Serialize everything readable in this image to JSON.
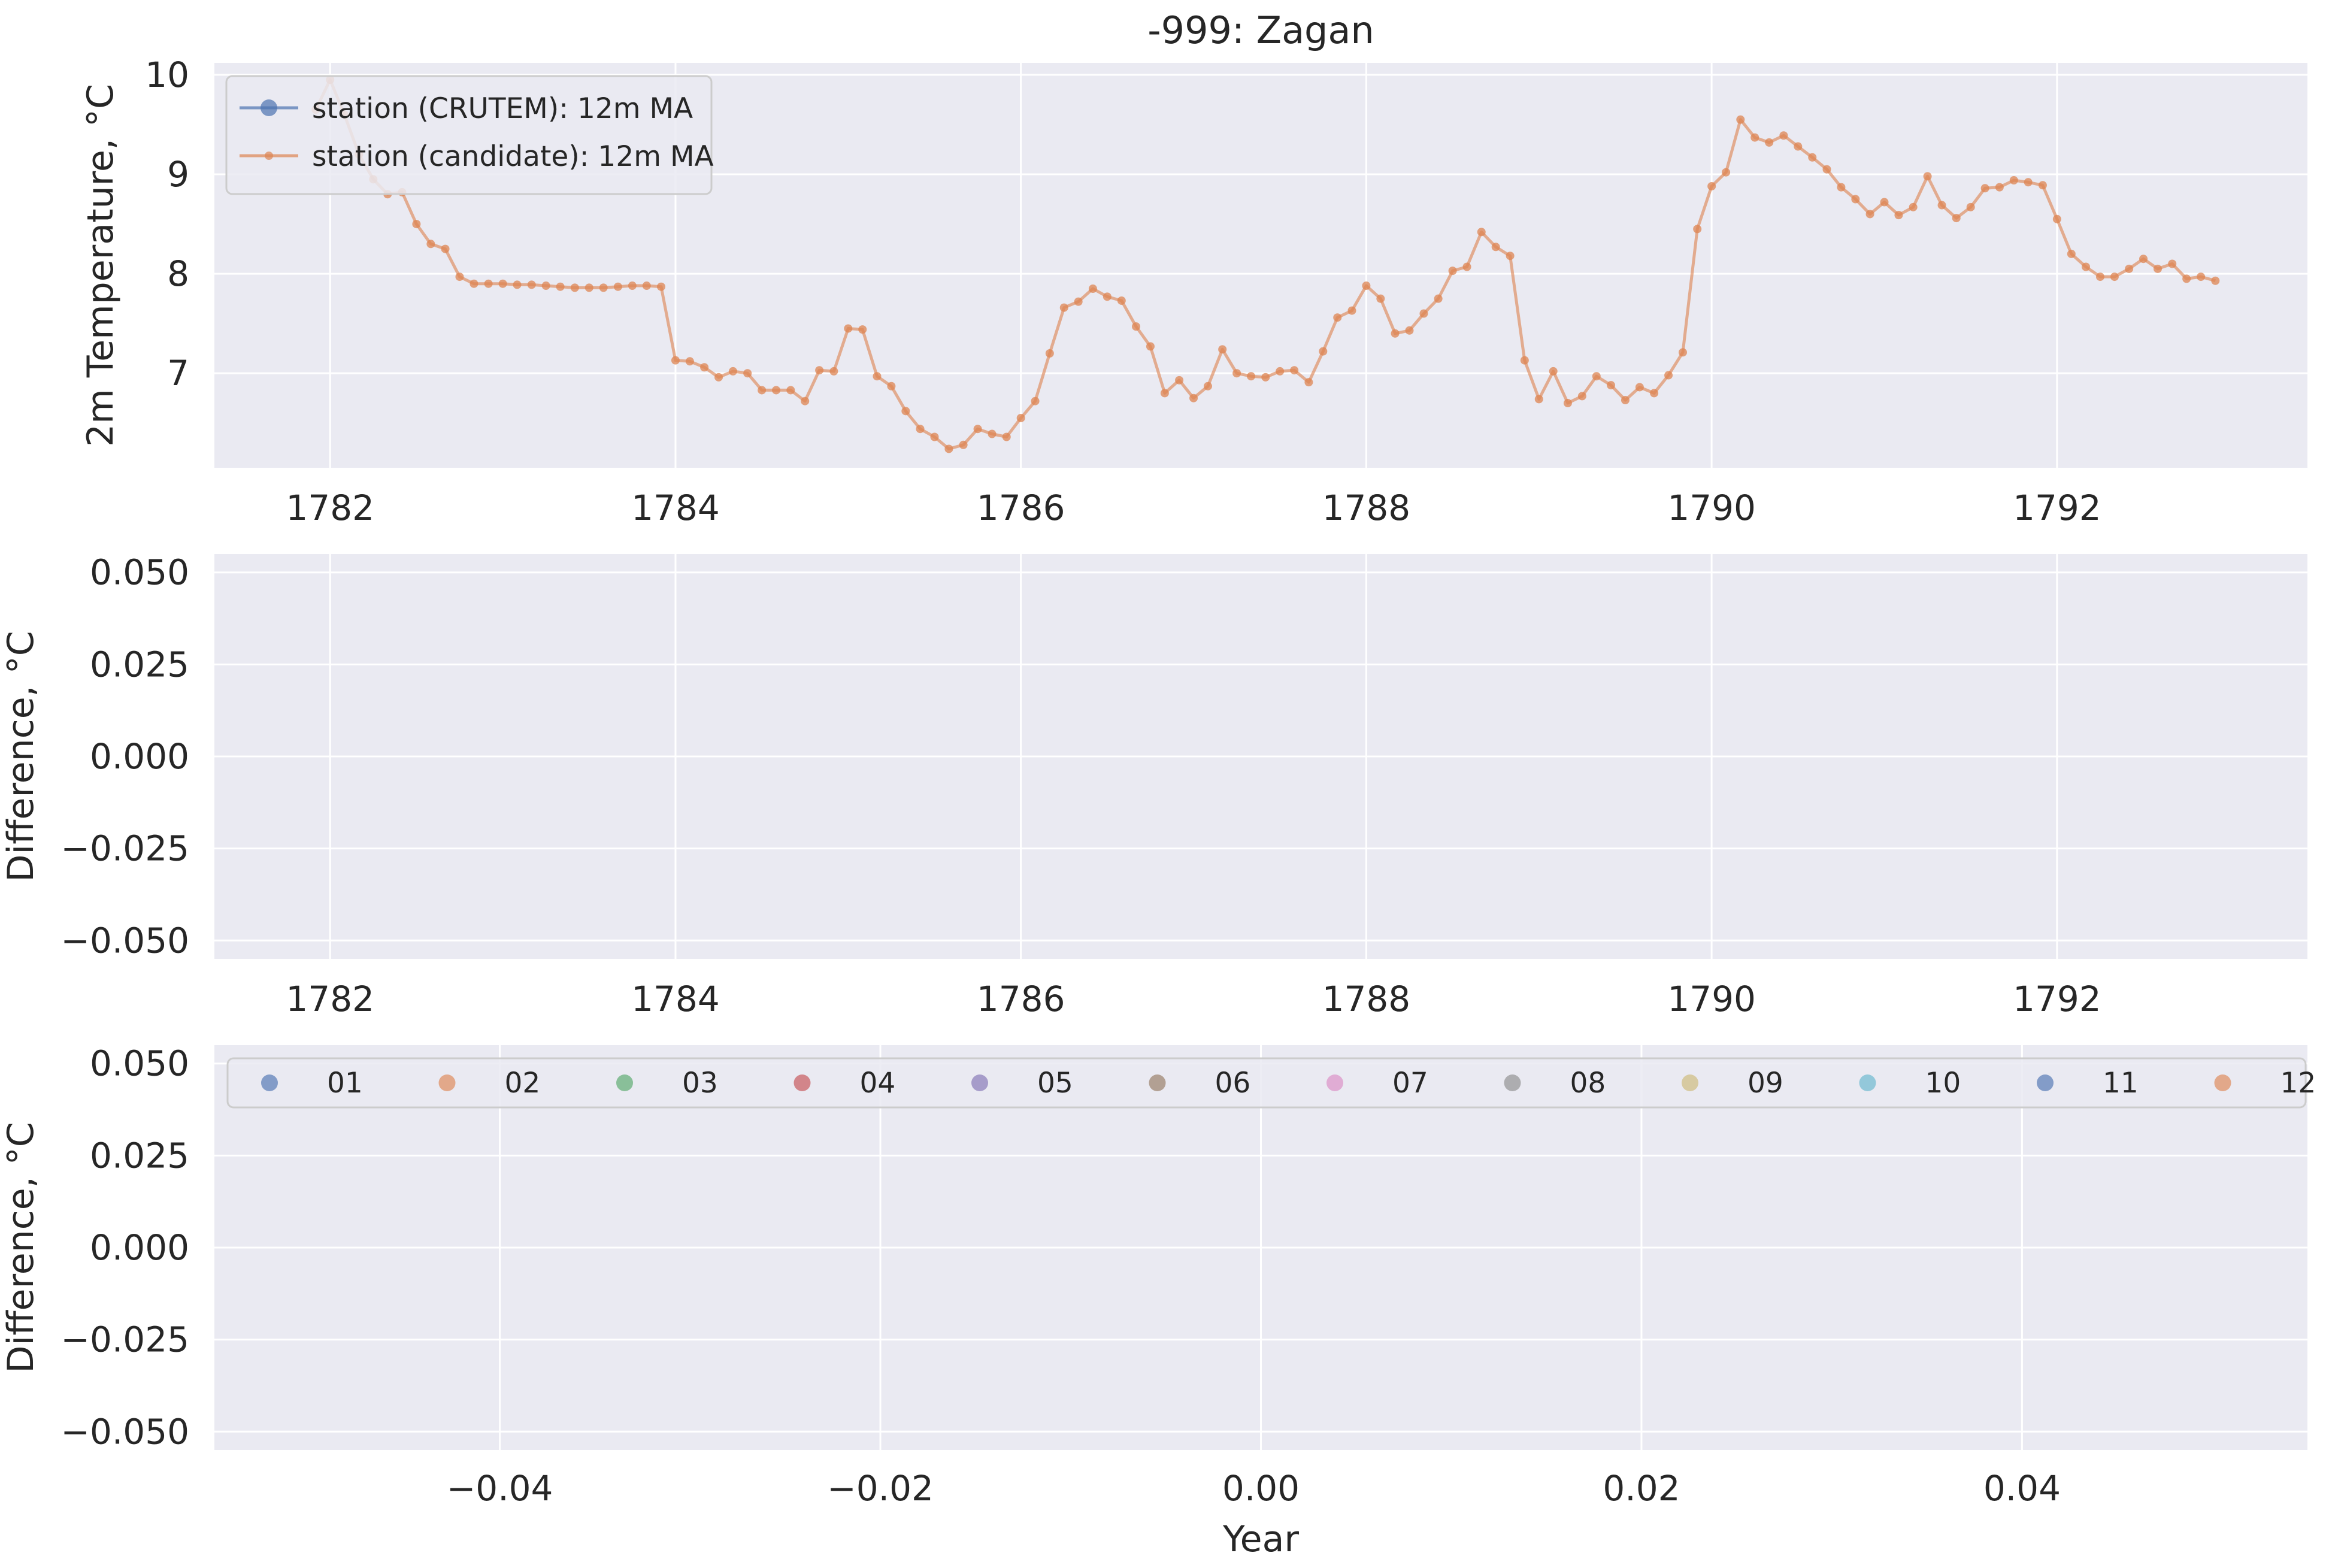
{
  "figure": {
    "background": "#ffffff",
    "axes_background": "#eaeaf2",
    "grid_color": "#ffffff",
    "text_color": "#262626"
  },
  "chart_data": [
    {
      "type": "line",
      "title": "-999: Zagan",
      "xlabel": "",
      "ylabel": "2m Temperature, °C",
      "xlim": [
        1781.33,
        1793.45
      ],
      "ylim": [
        6.05,
        10.12
      ],
      "xticks": [
        1782,
        1784,
        1786,
        1788,
        1790,
        1792
      ],
      "xtick_labels": [
        "1782",
        "1784",
        "1786",
        "1788",
        "1790",
        "1792"
      ],
      "yticks": [
        7,
        8,
        9,
        10
      ],
      "ytick_labels": [
        "7",
        "8",
        "9",
        "10"
      ],
      "grid": true,
      "legend": {
        "placement": "upper left",
        "entries": [
          {
            "label": "station (CRUTEM): 12m MA",
            "color": "#4c72b0",
            "marker": "circle"
          },
          {
            "label": "station (candidate): 12m MA",
            "color": "#dd8452",
            "marker": "circle-small"
          }
        ]
      },
      "series": [
        {
          "name": "station (CRUTEM): 12m MA",
          "color": "#4c72b0",
          "x": [],
          "y": []
        },
        {
          "name": "station (candidate): 12m MA",
          "color": "#dd8452",
          "x": [
            1781.917,
            1782.0,
            1782.083,
            1782.167,
            1782.25,
            1782.333,
            1782.417,
            1782.5,
            1782.583,
            1782.667,
            1782.75,
            1782.833,
            1782.917,
            1783.0,
            1783.083,
            1783.167,
            1783.25,
            1783.333,
            1783.417,
            1783.5,
            1783.583,
            1783.667,
            1783.75,
            1783.833,
            1783.917,
            1784.0,
            1784.083,
            1784.167,
            1784.25,
            1784.333,
            1784.417,
            1784.5,
            1784.583,
            1784.667,
            1784.75,
            1784.833,
            1784.917,
            1785.0,
            1785.083,
            1785.167,
            1785.25,
            1785.333,
            1785.417,
            1785.5,
            1785.583,
            1785.667,
            1785.75,
            1785.833,
            1785.917,
            1786.0,
            1786.083,
            1786.167,
            1786.25,
            1786.333,
            1786.417,
            1786.5,
            1786.583,
            1786.667,
            1786.75,
            1786.833,
            1786.917,
            1787.0,
            1787.083,
            1787.167,
            1787.25,
            1787.333,
            1787.417,
            1787.5,
            1787.583,
            1787.667,
            1787.75,
            1787.833,
            1787.917,
            1788.0,
            1788.083,
            1788.167,
            1788.25,
            1788.333,
            1788.417,
            1788.5,
            1788.583,
            1788.667,
            1788.75,
            1788.833,
            1788.917,
            1789.0,
            1789.083,
            1789.167,
            1789.25,
            1789.333,
            1789.417,
            1789.5,
            1789.583,
            1789.667,
            1789.75,
            1789.833,
            1789.917,
            1790.0,
            1790.083,
            1790.167,
            1790.25,
            1790.333,
            1790.417,
            1790.5,
            1790.583,
            1790.667,
            1790.75,
            1790.833,
            1790.917,
            1791.0,
            1791.083,
            1791.167,
            1791.25,
            1791.333,
            1791.417,
            1791.5,
            1791.583,
            1791.667,
            1791.75,
            1791.833,
            1791.917,
            1792.0,
            1792.083,
            1792.167,
            1792.25,
            1792.333,
            1792.417,
            1792.5,
            1792.583,
            1792.667,
            1792.75,
            1792.833,
            1792.917
          ],
          "y": [
            9.65,
            9.95,
            9.6,
            9.2,
            8.95,
            8.8,
            8.82,
            8.5,
            8.3,
            8.25,
            7.97,
            7.9,
            7.9,
            7.9,
            7.89,
            7.89,
            7.88,
            7.87,
            7.86,
            7.86,
            7.86,
            7.87,
            7.88,
            7.88,
            7.87,
            7.13,
            7.12,
            7.06,
            6.96,
            7.02,
            7.0,
            6.83,
            6.83,
            6.83,
            6.72,
            7.03,
            7.02,
            7.45,
            7.44,
            6.97,
            6.87,
            6.62,
            6.44,
            6.36,
            6.24,
            6.28,
            6.44,
            6.39,
            6.36,
            6.55,
            6.72,
            7.2,
            7.66,
            7.72,
            7.85,
            7.77,
            7.73,
            7.47,
            7.27,
            6.8,
            6.93,
            6.75,
            6.87,
            7.24,
            7.0,
            6.97,
            6.96,
            7.02,
            7.03,
            6.91,
            7.22,
            7.56,
            7.63,
            7.88,
            7.75,
            7.4,
            7.43,
            7.6,
            7.75,
            8.03,
            8.07,
            8.42,
            8.27,
            8.18,
            7.13,
            6.74,
            7.02,
            6.7,
            6.77,
            6.97,
            6.88,
            6.73,
            6.86,
            6.8,
            6.98,
            7.21,
            8.45,
            8.88,
            9.02,
            9.55,
            9.37,
            9.32,
            9.39,
            9.28,
            9.17,
            9.05,
            8.87,
            8.75,
            8.6,
            8.72,
            8.59,
            8.67,
            8.98,
            8.69,
            8.56,
            8.67,
            8.86,
            8.87,
            8.94,
            8.92,
            8.89,
            8.55,
            8.2,
            8.07,
            7.97,
            7.97,
            8.05,
            8.15,
            8.05,
            8.1,
            7.95,
            7.97,
            7.93
          ]
        }
      ]
    },
    {
      "type": "scatter",
      "title": "",
      "xlabel": "",
      "ylabel": "Difference, °C",
      "xlim": [
        1781.33,
        1793.45
      ],
      "ylim": [
        -0.055,
        0.055
      ],
      "xticks": [
        1782,
        1784,
        1786,
        1788,
        1790,
        1792
      ],
      "xtick_labels": [
        "1782",
        "1784",
        "1786",
        "1788",
        "1790",
        "1792"
      ],
      "yticks": [
        -0.05,
        -0.025,
        0.0,
        0.025,
        0.05
      ],
      "ytick_labels": [
        "−0.050",
        "−0.025",
        "0.000",
        "0.025",
        "0.050"
      ],
      "grid": true,
      "series": []
    },
    {
      "type": "scatter",
      "title": "",
      "xlabel": "Year",
      "ylabel": "Difference, °C",
      "xlim": [
        -0.055,
        0.055
      ],
      "ylim": [
        -0.055,
        0.055
      ],
      "xticks": [
        -0.04,
        -0.02,
        0.0,
        0.02,
        0.04
      ],
      "xtick_labels": [
        "−0.04",
        "−0.02",
        "0.00",
        "0.02",
        "0.04"
      ],
      "yticks": [
        -0.05,
        -0.025,
        0.0,
        0.025,
        0.05
      ],
      "ytick_labels": [
        "−0.050",
        "−0.025",
        "0.000",
        "0.025",
        "0.050"
      ],
      "grid": true,
      "legend": {
        "placement": "upper center",
        "entries": [
          {
            "label": "01",
            "color": "#4c72b0"
          },
          {
            "label": "02",
            "color": "#dd8452"
          },
          {
            "label": "03",
            "color": "#55a868"
          },
          {
            "label": "04",
            "color": "#c44e52"
          },
          {
            "label": "05",
            "color": "#8172b3"
          },
          {
            "label": "06",
            "color": "#937860"
          },
          {
            "label": "07",
            "color": "#da8bc3"
          },
          {
            "label": "08",
            "color": "#8c8c8c"
          },
          {
            "label": "09",
            "color": "#ccb974"
          },
          {
            "label": "10",
            "color": "#64b5cd"
          },
          {
            "label": "11",
            "color": "#4c72b0"
          },
          {
            "label": "12",
            "color": "#dd8452"
          }
        ]
      },
      "series": []
    }
  ]
}
